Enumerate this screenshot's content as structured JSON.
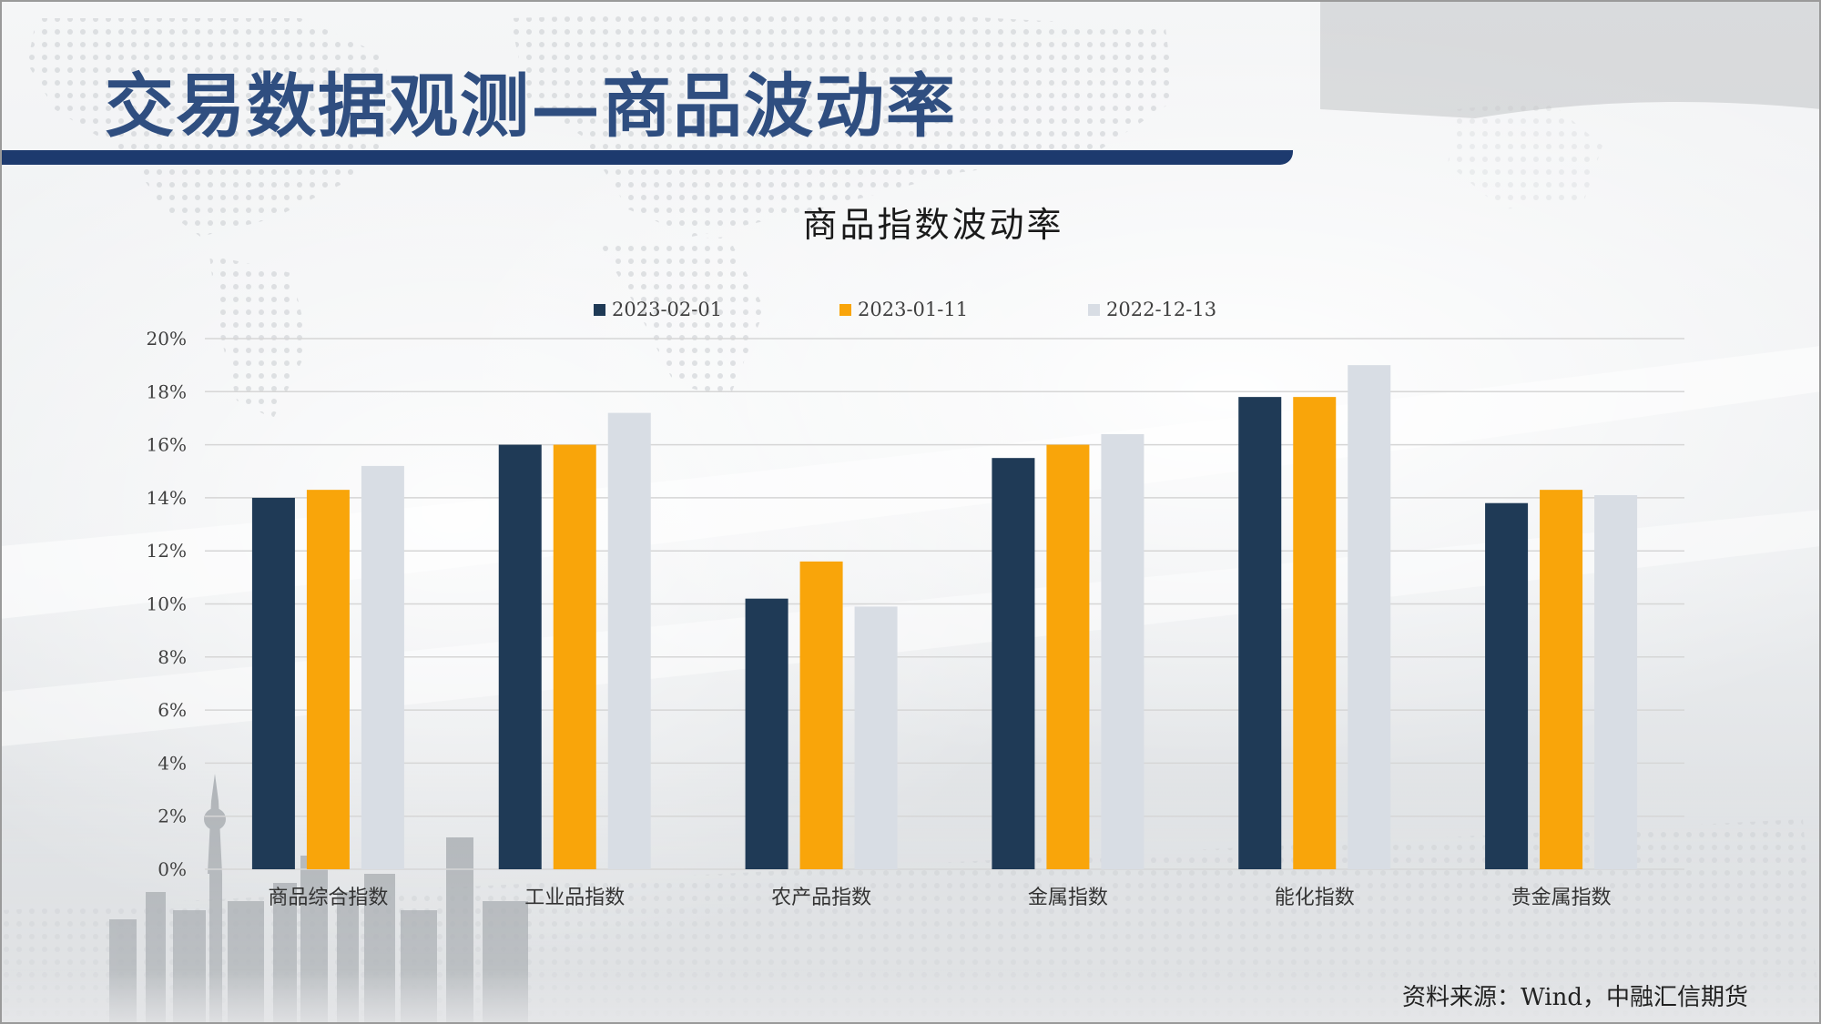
{
  "slide": {
    "title": "交易数据观测—商品波动率",
    "source": "资料来源：Wind，中融汇信期货"
  },
  "colors": {
    "title_text": "#2f4e80",
    "title_bar": "#1d3a6e",
    "series": [
      "#1f3a56",
      "#f9a50a",
      "#d8dde4"
    ],
    "gridline": "#d6d6d6",
    "axis_text": "#404040"
  },
  "chart_data": {
    "type": "bar",
    "title": "商品指数波动率",
    "xlabel": "",
    "ylabel": "",
    "categories": [
      "商品综合指数",
      "工业品指数",
      "农产品指数",
      "金属指数",
      "能化指数",
      "贵金属指数"
    ],
    "series": [
      {
        "name": "2023-02-01",
        "values": [
          14.0,
          16.0,
          10.2,
          15.5,
          17.8,
          13.8
        ]
      },
      {
        "name": "2023-01-11",
        "values": [
          14.3,
          16.0,
          11.6,
          16.0,
          17.8,
          14.3
        ]
      },
      {
        "name": "2022-12-13",
        "values": [
          15.2,
          17.2,
          9.9,
          16.4,
          19.0,
          14.1
        ]
      }
    ],
    "ylim": [
      0,
      20
    ],
    "yticks": [
      "0%",
      "2%",
      "4%",
      "6%",
      "8%",
      "10%",
      "12%",
      "14%",
      "16%",
      "18%",
      "20%"
    ],
    "ytick_values": [
      0,
      2,
      4,
      6,
      8,
      10,
      12,
      14,
      16,
      18,
      20
    ],
    "grid": true,
    "legend_position": "top-center"
  }
}
